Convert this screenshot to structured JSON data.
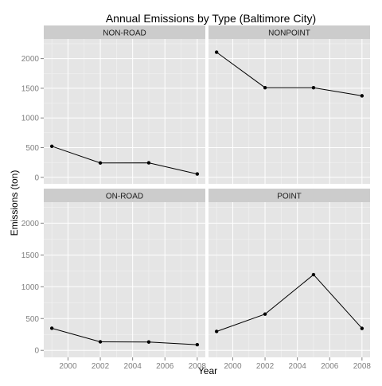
{
  "chart_data": {
    "type": "line",
    "title": "Annual Emissions by Type (Baltimore City)",
    "xlabel": "Year",
    "ylabel": "Emissions (ton)",
    "xlim": [
      1998.5,
      2008.5
    ],
    "ylim": [
      -110,
      2330
    ],
    "x_ticks": [
      2000,
      2002,
      2004,
      2006,
      2008
    ],
    "x_tick_labels": [
      "2000",
      "2002",
      "2004",
      "2006",
      "2008"
    ],
    "y_ticks": [
      0,
      500,
      1000,
      1500,
      2000
    ],
    "y_tick_labels": [
      "0",
      "500",
      "1000",
      "1500",
      "2000"
    ],
    "grid": true,
    "facets": [
      {
        "label": "NON-ROAD",
        "x": [
          1999,
          2002,
          2005,
          2008
        ],
        "y": [
          523,
          242,
          244,
          56
        ]
      },
      {
        "label": "NONPOINT",
        "x": [
          1999,
          2002,
          2005,
          2008
        ],
        "y": [
          2108,
          1510,
          1510,
          1373
        ]
      },
      {
        "label": "ON-ROAD",
        "x": [
          1999,
          2002,
          2005,
          2008
        ],
        "y": [
          347,
          134,
          131,
          89
        ]
      },
      {
        "label": "POINT",
        "x": [
          1999,
          2002,
          2005,
          2008
        ],
        "y": [
          297,
          570,
          1190,
          345
        ]
      }
    ]
  },
  "colors": {
    "panel_background": "#e5e5e5",
    "strip_background": "#cccccc",
    "grid": "#ffffff",
    "line": "#000000",
    "point": "#000000",
    "tick_label": "#7f7f7f"
  }
}
